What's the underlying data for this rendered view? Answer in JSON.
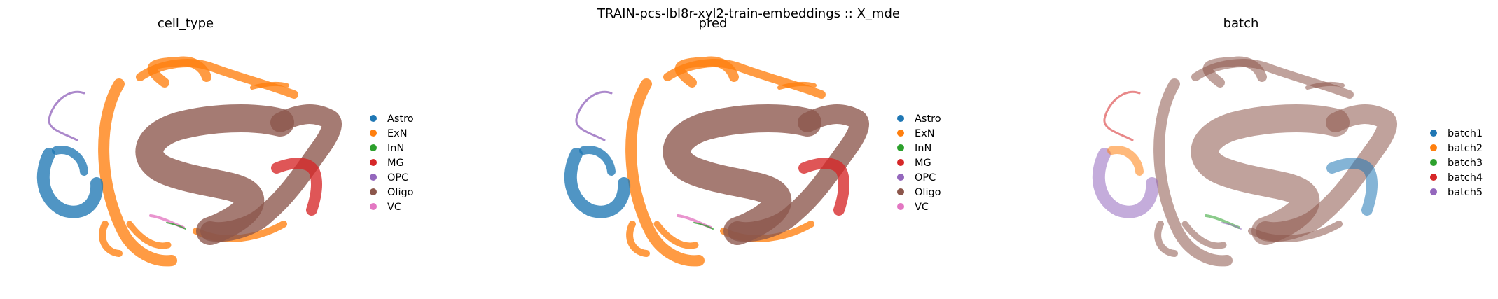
{
  "figure": {
    "suptitle": "TRAIN-pcs-lbl8r-xyl2-train-embeddings :: X_mde"
  },
  "colors": {
    "Astro": "#1f77b4",
    "ExN": "#ff7f0e",
    "InN": "#2ca02c",
    "MG": "#d62728",
    "OPC": "#9467bd",
    "Oligo": "#8c564b",
    "VC": "#e377c2",
    "batch1": "#1f77b4",
    "batch2": "#ff7f0e",
    "batch3": "#2ca02c",
    "batch4": "#d62728",
    "batch5": "#9467bd"
  },
  "chart_data": [
    {
      "type": "scatter",
      "title": "cell_type",
      "xlabel": "",
      "ylabel": "",
      "axes_visible": false,
      "legend_position": "right",
      "legend": [
        "Astro",
        "ExN",
        "InN",
        "MG",
        "OPC",
        "Oligo",
        "VC"
      ]
    },
    {
      "type": "scatter",
      "title": "pred",
      "xlabel": "",
      "ylabel": "",
      "axes_visible": false,
      "legend_position": "right",
      "legend": [
        "Astro",
        "ExN",
        "InN",
        "MG",
        "OPC",
        "Oligo",
        "VC"
      ]
    },
    {
      "type": "scatter",
      "title": "batch",
      "xlabel": "",
      "ylabel": "",
      "axes_visible": false,
      "legend_position": "right",
      "legend": [
        "batch1",
        "batch2",
        "batch3",
        "batch4",
        "batch5"
      ]
    }
  ]
}
